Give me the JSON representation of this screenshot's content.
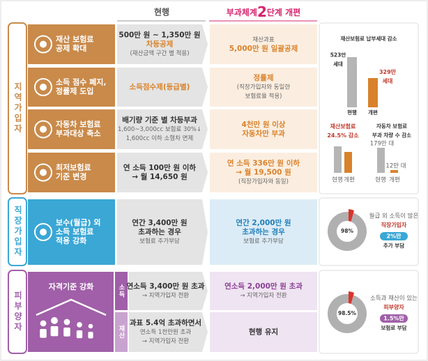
{
  "header": {
    "current": "현행",
    "reform_prefix": "부과체계",
    "reform_step": "2",
    "reform_suffix": "단계 개편"
  },
  "sections": [
    {
      "label": "지역가입자",
      "rows": [
        {
          "title": [
            "재산 보험료",
            "공제 확대"
          ],
          "current": [
            "500만 원 ~ 1,350만 원",
            "차등공제",
            "(재산금액 구간 별 적용)"
          ],
          "reform": [
            "재산과표",
            "5,000만 원 일괄공제"
          ]
        },
        {
          "title": [
            "소득 점수 폐지,",
            "정률제 도입"
          ],
          "current": [
            "소득점수제(등급별)"
          ],
          "reform": [
            "정률제",
            "(직장가입자와 동일한",
            "보험료율 적용)"
          ]
        },
        {
          "title": [
            "자동차 보험료",
            "부과대상 축소"
          ],
          "current": [
            "배기량 기준 별 차등부과",
            "1,600~3,000cc 보험료 30%↓",
            "1,600cc 이하 소형차 면제"
          ],
          "reform": [
            "4천만 원 이상",
            "자동차만 부과"
          ]
        },
        {
          "title": [
            "최저보험료",
            "기준 변경"
          ],
          "current": [
            "연 소득 100만 원 이하",
            "→ 월 14,650 원"
          ],
          "reform": [
            "연 소득 336만 원 이하",
            "→ 월 19,500 원",
            "(직장가입자와 동일)"
          ]
        }
      ],
      "panel": {
        "title": "재산보험료 납부세대 감소",
        "before": [
          "523만",
          "세대"
        ],
        "after": [
          "329만",
          "세대"
        ],
        "bar_labels": [
          "현행",
          "개편"
        ],
        "left": {
          "title": [
            "재산보험료",
            "24.5% 감소"
          ],
          "bar_labels": [
            "현행",
            "개편"
          ]
        },
        "right": {
          "title": [
            "자동차 보험료",
            "부과 차량 수 감소"
          ],
          "before": "179만 대",
          "after": "12만 대",
          "bar_labels": [
            "현행",
            "개편"
          ]
        }
      }
    },
    {
      "label": "직장가입자",
      "rows": [
        {
          "title": [
            "보수(월급) 외",
            "소득 보험료",
            "적용 강화"
          ],
          "current": [
            "연간 3,400만 원",
            "초과하는 경우",
            "보험료 추가부담"
          ],
          "reform": [
            "연간 2,000만 원",
            "초과하는 경우",
            "보험료 추가부담"
          ]
        }
      ],
      "panel": {
        "pie_label": "98%",
        "lines": [
          "월급 외 소득이 많은",
          "직장가입자",
          "2%만",
          "추가 부담"
        ]
      }
    },
    {
      "label": "피부양자",
      "title": [
        "자격기준 강화"
      ],
      "rows": [
        {
          "tag": "소득",
          "current": [
            "연소득 3,400만 원 초과",
            "→ 지역가입자 전환"
          ],
          "reform": [
            "연소득 2,000만 원 초과",
            "→ 지역가입자 전환"
          ]
        },
        {
          "tag": "재산",
          "current": [
            "과표 5.4억 초과하면서",
            "연소득 1천만원 초과",
            "→ 지역가입자 전환"
          ],
          "reform": [
            "현행 유지"
          ]
        }
      ],
      "panel": {
        "pie_label": "98.5%",
        "lines": [
          "소득과 재산이 있는",
          "피부양자",
          "1.5%만",
          "보험료 부담"
        ]
      }
    }
  ]
}
